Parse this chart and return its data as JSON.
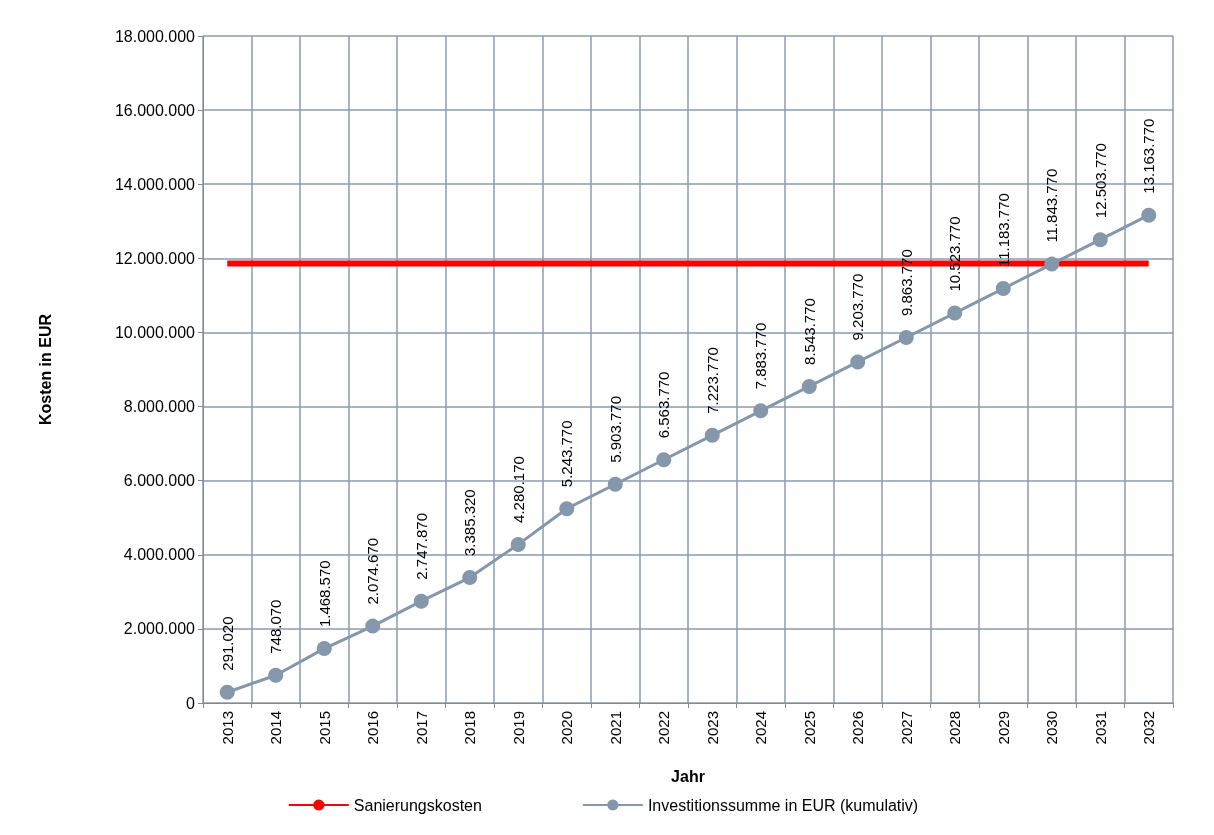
{
  "chart_data": {
    "type": "line",
    "xlabel": "Jahr",
    "ylabel": "Kosten in EUR",
    "categories": [
      "2013",
      "2014",
      "2015",
      "2016",
      "2017",
      "2018",
      "2019",
      "2020",
      "2021",
      "2022",
      "2023",
      "2024",
      "2025",
      "2026",
      "2027",
      "2028",
      "2029",
      "2030",
      "2031",
      "2032"
    ],
    "series": [
      {
        "name": "Sanierungskosten",
        "color": "#ff0000",
        "marker": "none",
        "values": [
          11860000,
          11860000,
          11860000,
          11860000,
          11860000,
          11860000,
          11860000,
          11860000,
          11860000,
          11860000,
          11860000,
          11860000,
          11860000,
          11860000,
          11860000,
          11860000,
          11860000,
          11860000,
          11860000,
          11860000
        ]
      },
      {
        "name": "Investitionssumme in EUR (kumulativ)",
        "color": "#8497ab",
        "marker": "circle",
        "values": [
          291020,
          748070,
          1468570,
          2074670,
          2747870,
          3385320,
          4280170,
          5243770,
          5903770,
          6563770,
          7223770,
          7883770,
          8543770,
          9203770,
          9863770,
          10523770,
          11183770,
          11843770,
          12503770,
          13163770
        ],
        "value_labels": [
          "291.020",
          "748.070",
          "1.468.570",
          "2.074.670",
          "2.747.870",
          "3.385.320",
          "4.280.170",
          "5.243.770",
          "5.903.770",
          "6.563.770",
          "7.223.770",
          "7.883.770",
          "8.543.770",
          "9.203.770",
          "9.863.770",
          "10.523.770",
          "11.183.770",
          "11.843.770",
          "12.503.770",
          "13.163.770"
        ]
      }
    ],
    "ylim": [
      0,
      18000000
    ],
    "yticks": [
      {
        "value": 0,
        "label": "0"
      },
      {
        "value": 2000000,
        "label": "2.000.000"
      },
      {
        "value": 4000000,
        "label": "4.000.000"
      },
      {
        "value": 6000000,
        "label": "6.000.000"
      },
      {
        "value": 8000000,
        "label": "8.000.000"
      },
      {
        "value": 10000000,
        "label": "10.000.000"
      },
      {
        "value": 12000000,
        "label": "12.000.000"
      },
      {
        "value": 14000000,
        "label": "14.000.000"
      },
      {
        "value": 16000000,
        "label": "16.000.000"
      },
      {
        "value": 18000000,
        "label": "18.000.000"
      }
    ],
    "grid": true,
    "legend": "bottom"
  }
}
